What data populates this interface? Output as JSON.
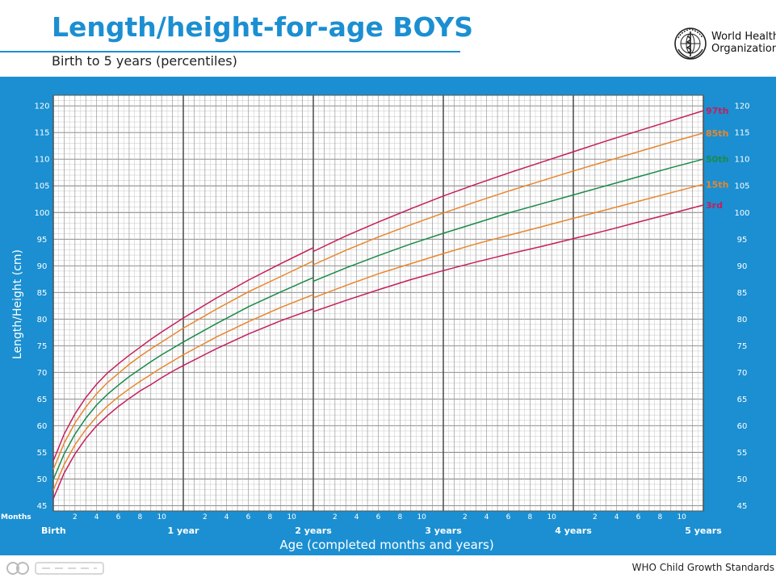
{
  "header": {
    "title": "Length/height-for-age BOYS",
    "subtitle": "Birth to 5 years (percentiles)"
  },
  "logo": {
    "icon": "who-emblem-icon",
    "line1": "World Health",
    "line2": "Organization"
  },
  "footer": {
    "source": "WHO Child Growth Standards",
    "watermark_icon": "watermark-logo-icon"
  },
  "colors": {
    "frame": "#1b8fd1",
    "p3": "#c51e5c",
    "p15": "#e8862d",
    "p50": "#1a8a4a",
    "p85": "#e8862d",
    "p97": "#c51e5c",
    "grid": "#9a9a9a",
    "grid_major": "#555555"
  },
  "chart_data": {
    "type": "line",
    "title": "Length/height-for-age BOYS",
    "subtitle": "Birth to 5 years (percentiles)",
    "xlabel": "Age (completed months and years)",
    "ylabel": "Length/Height (cm)",
    "xlim": [
      0,
      60
    ],
    "ylim": [
      44,
      122
    ],
    "months_label": "Months",
    "x_month_ticks": [
      2,
      4,
      6,
      8,
      10
    ],
    "x_year_labels": [
      {
        "month": 0,
        "label": "Birth"
      },
      {
        "month": 12,
        "label": "1 year"
      },
      {
        "month": 24,
        "label": "2 years"
      },
      {
        "month": 36,
        "label": "3 years"
      },
      {
        "month": 48,
        "label": "4 years"
      },
      {
        "month": 60,
        "label": "5 years"
      }
    ],
    "y_ticks": [
      45,
      50,
      55,
      60,
      65,
      70,
      75,
      80,
      85,
      90,
      95,
      100,
      105,
      110,
      115,
      120
    ],
    "length_height_break_month": 24,
    "grid": true,
    "x": [
      0,
      1,
      2,
      3,
      4,
      5,
      6,
      7,
      8,
      9,
      10,
      11,
      12,
      15,
      18,
      21,
      24,
      24,
      27,
      30,
      33,
      36,
      39,
      42,
      45,
      48,
      51,
      54,
      57,
      60
    ],
    "series": [
      {
        "name": "3rd",
        "values": [
          46.3,
          51.1,
          54.7,
          57.6,
          60.0,
          61.9,
          63.6,
          65.1,
          66.5,
          67.7,
          69.0,
          70.2,
          71.3,
          74.4,
          77.2,
          79.7,
          81.9,
          81.4,
          83.5,
          85.5,
          87.4,
          89.1,
          90.7,
          92.2,
          93.6,
          95.1,
          96.6,
          98.2,
          99.8,
          101.4
        ]
      },
      {
        "name": "15th",
        "values": [
          47.9,
          52.7,
          56.4,
          59.3,
          61.7,
          63.7,
          65.4,
          66.9,
          68.3,
          69.6,
          70.9,
          72.1,
          73.3,
          76.6,
          79.5,
          82.2,
          84.6,
          84.0,
          86.3,
          88.5,
          90.4,
          92.3,
          94.1,
          95.7,
          97.3,
          98.9,
          100.5,
          102.1,
          103.7,
          105.3
        ]
      },
      {
        "name": "50th",
        "values": [
          49.9,
          54.7,
          58.4,
          61.4,
          63.9,
          65.9,
          67.6,
          69.2,
          70.6,
          72.0,
          73.3,
          74.5,
          75.7,
          79.1,
          82.3,
          85.1,
          87.8,
          87.1,
          89.6,
          91.9,
          94.1,
          96.1,
          98.0,
          99.9,
          101.6,
          103.3,
          105.0,
          106.7,
          108.4,
          110.0
        ]
      },
      {
        "name": "85th",
        "values": [
          51.8,
          56.7,
          60.5,
          63.5,
          66.0,
          68.1,
          69.8,
          71.5,
          73.0,
          74.4,
          75.7,
          77.0,
          78.3,
          81.8,
          85.1,
          88.0,
          90.9,
          90.2,
          92.9,
          95.4,
          97.7,
          99.9,
          102.0,
          104.0,
          105.9,
          107.8,
          109.6,
          111.4,
          113.2,
          114.9
        ]
      },
      {
        "name": "97th",
        "values": [
          53.4,
          58.4,
          62.2,
          65.3,
          67.8,
          69.9,
          71.6,
          73.2,
          74.7,
          76.2,
          77.6,
          78.9,
          80.2,
          83.9,
          87.3,
          90.4,
          93.4,
          92.7,
          95.6,
          98.2,
          100.7,
          103.1,
          105.3,
          107.4,
          109.4,
          111.4,
          113.4,
          115.3,
          117.2,
          119.1
        ]
      }
    ]
  }
}
